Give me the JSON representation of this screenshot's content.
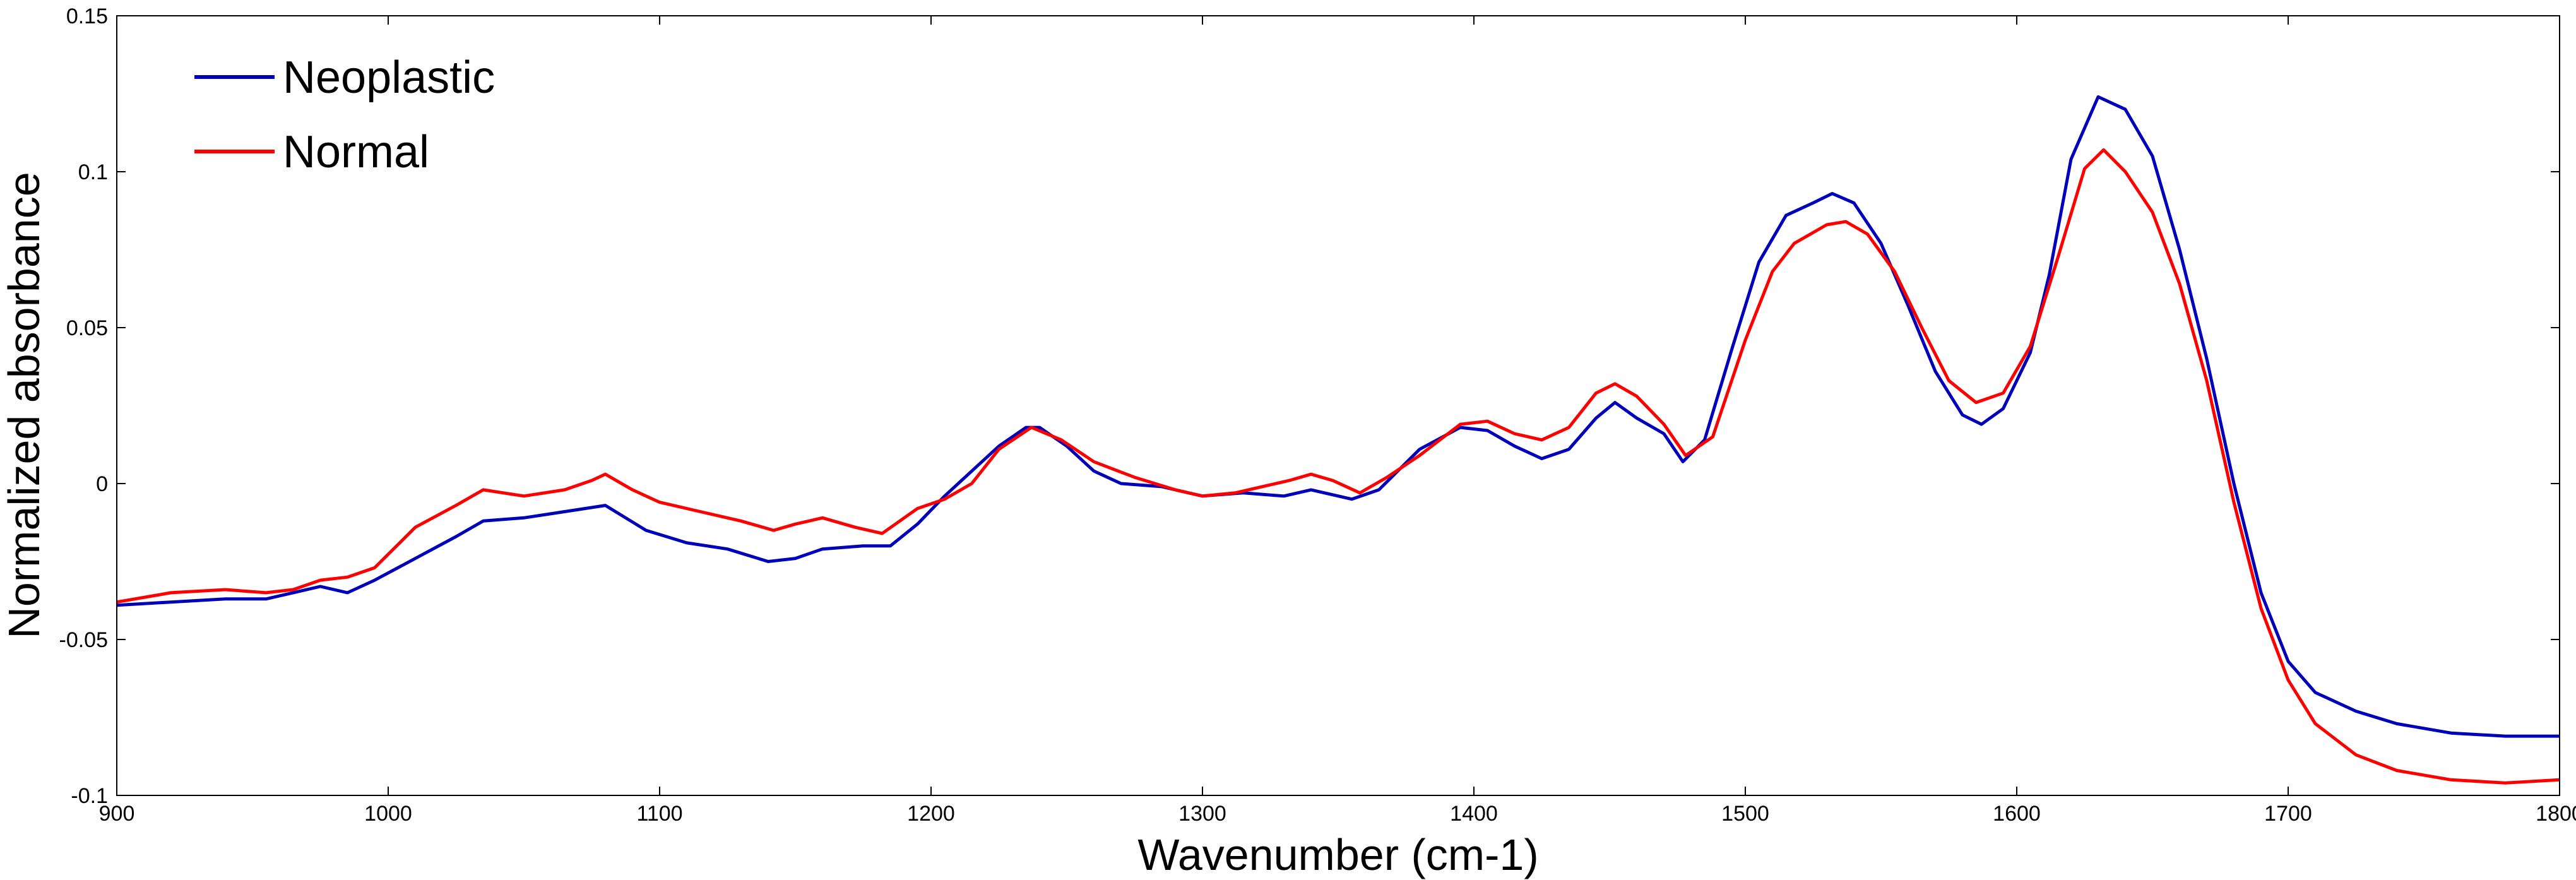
{
  "chart_data": {
    "type": "line",
    "xlabel": "Wavenumber (cm-1)",
    "ylabel": "Normalized absorbance",
    "xlim": [
      900,
      1800
    ],
    "ylim": [
      -0.1,
      0.15
    ],
    "x_ticks": [
      "900",
      "1000",
      "1100",
      "1200",
      "1300",
      "1400",
      "1500",
      "1600",
      "1700",
      "1800"
    ],
    "y_ticks": [
      "-0.1",
      "-0.05",
      "0",
      "0.05",
      "0.1",
      "0.15"
    ],
    "grid": false,
    "legend_position": "top-left",
    "series": [
      {
        "name": "Neoplastic",
        "color": "#0000bb",
        "points": [
          [
            900,
            -0.039
          ],
          [
            920,
            -0.038
          ],
          [
            940,
            -0.037
          ],
          [
            955,
            -0.037
          ],
          [
            965,
            -0.035
          ],
          [
            975,
            -0.033
          ],
          [
            985,
            -0.035
          ],
          [
            995,
            -0.031
          ],
          [
            1010,
            -0.024
          ],
          [
            1025,
            -0.017
          ],
          [
            1035,
            -0.012
          ],
          [
            1050,
            -0.011
          ],
          [
            1065,
            -0.009
          ],
          [
            1080,
            -0.007
          ],
          [
            1095,
            -0.015
          ],
          [
            1110,
            -0.019
          ],
          [
            1125,
            -0.021
          ],
          [
            1140,
            -0.025
          ],
          [
            1150,
            -0.024
          ],
          [
            1160,
            -0.021
          ],
          [
            1175,
            -0.02
          ],
          [
            1185,
            -0.02
          ],
          [
            1195,
            -0.013
          ],
          [
            1205,
            -0.004
          ],
          [
            1215,
            0.004
          ],
          [
            1225,
            0.012
          ],
          [
            1235,
            0.018
          ],
          [
            1240,
            0.018
          ],
          [
            1250,
            0.012
          ],
          [
            1260,
            0.004
          ],
          [
            1270,
            0.0
          ],
          [
            1285,
            -0.001
          ],
          [
            1300,
            -0.004
          ],
          [
            1315,
            -0.003
          ],
          [
            1330,
            -0.004
          ],
          [
            1340,
            -0.002
          ],
          [
            1355,
            -0.005
          ],
          [
            1365,
            -0.002
          ],
          [
            1380,
            0.011
          ],
          [
            1395,
            0.018
          ],
          [
            1405,
            0.017
          ],
          [
            1415,
            0.012
          ],
          [
            1425,
            0.008
          ],
          [
            1435,
            0.011
          ],
          [
            1445,
            0.021
          ],
          [
            1452,
            0.026
          ],
          [
            1460,
            0.021
          ],
          [
            1470,
            0.016
          ],
          [
            1477,
            0.007
          ],
          [
            1485,
            0.014
          ],
          [
            1495,
            0.043
          ],
          [
            1505,
            0.071
          ],
          [
            1515,
            0.086
          ],
          [
            1525,
            0.09
          ],
          [
            1532,
            0.093
          ],
          [
            1540,
            0.09
          ],
          [
            1550,
            0.077
          ],
          [
            1560,
            0.057
          ],
          [
            1570,
            0.036
          ],
          [
            1580,
            0.022
          ],
          [
            1587,
            0.019
          ],
          [
            1595,
            0.024
          ],
          [
            1605,
            0.042
          ],
          [
            1612,
            0.067
          ],
          [
            1620,
            0.104
          ],
          [
            1630,
            0.124
          ],
          [
            1640,
            0.12
          ],
          [
            1650,
            0.105
          ],
          [
            1660,
            0.075
          ],
          [
            1670,
            0.04
          ],
          [
            1680,
            0.0
          ],
          [
            1690,
            -0.035
          ],
          [
            1700,
            -0.057
          ],
          [
            1710,
            -0.067
          ],
          [
            1725,
            -0.073
          ],
          [
            1740,
            -0.077
          ],
          [
            1760,
            -0.08
          ],
          [
            1780,
            -0.081
          ],
          [
            1800,
            -0.081
          ]
        ]
      },
      {
        "name": "Normal",
        "color": "#ff0000",
        "points": [
          [
            900,
            -0.038
          ],
          [
            920,
            -0.035
          ],
          [
            940,
            -0.034
          ],
          [
            955,
            -0.035
          ],
          [
            965,
            -0.034
          ],
          [
            975,
            -0.031
          ],
          [
            985,
            -0.03
          ],
          [
            995,
            -0.027
          ],
          [
            1010,
            -0.014
          ],
          [
            1025,
            -0.007
          ],
          [
            1035,
            -0.002
          ],
          [
            1050,
            -0.004
          ],
          [
            1065,
            -0.002
          ],
          [
            1075,
            0.001
          ],
          [
            1080,
            0.003
          ],
          [
            1090,
            -0.002
          ],
          [
            1100,
            -0.006
          ],
          [
            1115,
            -0.009
          ],
          [
            1130,
            -0.012
          ],
          [
            1142,
            -0.015
          ],
          [
            1150,
            -0.013
          ],
          [
            1160,
            -0.011
          ],
          [
            1172,
            -0.014
          ],
          [
            1182,
            -0.016
          ],
          [
            1195,
            -0.008
          ],
          [
            1205,
            -0.005
          ],
          [
            1215,
            0.0
          ],
          [
            1225,
            0.011
          ],
          [
            1237,
            0.018
          ],
          [
            1248,
            0.014
          ],
          [
            1260,
            0.007
          ],
          [
            1275,
            0.002
          ],
          [
            1290,
            -0.002
          ],
          [
            1300,
            -0.004
          ],
          [
            1312,
            -0.003
          ],
          [
            1322,
            -0.001
          ],
          [
            1332,
            0.001
          ],
          [
            1340,
            0.003
          ],
          [
            1348,
            0.001
          ],
          [
            1358,
            -0.003
          ],
          [
            1368,
            0.002
          ],
          [
            1380,
            0.009
          ],
          [
            1395,
            0.019
          ],
          [
            1405,
            0.02
          ],
          [
            1415,
            0.016
          ],
          [
            1425,
            0.014
          ],
          [
            1435,
            0.018
          ],
          [
            1445,
            0.029
          ],
          [
            1452,
            0.032
          ],
          [
            1460,
            0.028
          ],
          [
            1470,
            0.019
          ],
          [
            1478,
            0.009
          ],
          [
            1488,
            0.015
          ],
          [
            1500,
            0.046
          ],
          [
            1510,
            0.068
          ],
          [
            1518,
            0.077
          ],
          [
            1530,
            0.083
          ],
          [
            1537,
            0.084
          ],
          [
            1545,
            0.08
          ],
          [
            1555,
            0.068
          ],
          [
            1565,
            0.05
          ],
          [
            1575,
            0.033
          ],
          [
            1585,
            0.026
          ],
          [
            1595,
            0.029
          ],
          [
            1605,
            0.044
          ],
          [
            1615,
            0.072
          ],
          [
            1625,
            0.101
          ],
          [
            1632,
            0.107
          ],
          [
            1640,
            0.1
          ],
          [
            1650,
            0.087
          ],
          [
            1660,
            0.064
          ],
          [
            1670,
            0.033
          ],
          [
            1680,
            -0.006
          ],
          [
            1690,
            -0.04
          ],
          [
            1700,
            -0.063
          ],
          [
            1710,
            -0.077
          ],
          [
            1725,
            -0.087
          ],
          [
            1740,
            -0.092
          ],
          [
            1760,
            -0.095
          ],
          [
            1780,
            -0.096
          ],
          [
            1800,
            -0.095
          ]
        ]
      }
    ]
  }
}
